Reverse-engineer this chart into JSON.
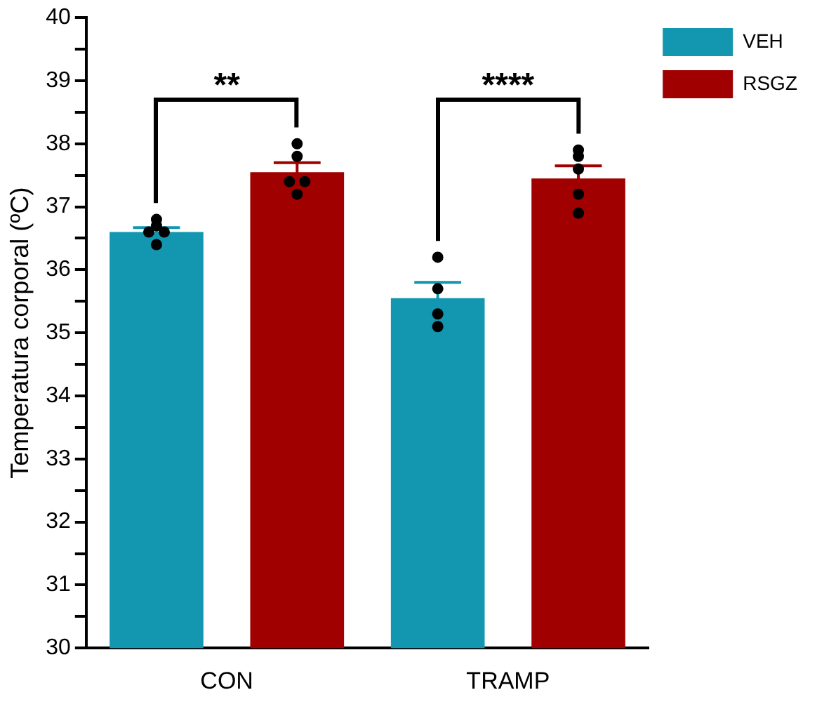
{
  "chart_data": {
    "type": "bar",
    "ylabel": "Temperatura corporal (ºC)",
    "categories": [
      "CON",
      "TRAMP"
    ],
    "series": [
      {
        "name": "VEH",
        "color": "#1396b0",
        "values": [
          36.6,
          35.55
        ],
        "errors": [
          0.07,
          0.25
        ]
      },
      {
        "name": "RSGZ",
        "color": "#a00000",
        "values": [
          37.55,
          37.45
        ],
        "errors": [
          0.15,
          0.2
        ]
      },
      {
        "type": "scatter",
        "color": "#000000",
        "x": [
          "CON",
          "CON",
          "CON",
          "CON",
          "CON",
          "TRAMP",
          "TRAMP",
          "TRAMP",
          "TRAMP"
        ],
        "values": [
          36.8,
          36.7,
          36.6,
          36.6,
          36.4,
          36.2,
          35.7,
          35.3,
          35.1
        ]
      },
      {
        "type": "scatter",
        "color": "#000000",
        "x": [
          "CON",
          "CON",
          "CON",
          "CON",
          "CON",
          "TRAMP",
          "TRAMP",
          "TRAMP",
          "TRAMP",
          "TRAMP"
        ],
        "values": [
          38.0,
          37.8,
          37.4,
          37.4,
          37.2,
          37.9,
          37.8,
          37.6,
          37.2,
          36.9
        ]
      }
    ],
    "annotations": [
      "**",
      "****"
    ],
    "ylim": [
      30,
      40
    ],
    "yticks": [
      30,
      {
        "value": 30.5,
        "label": null
      },
      31,
      {
        "value": 31.5,
        "label": null
      },
      32,
      {
        "value": 32.5,
        "label": null
      },
      33,
      {
        "value": 33.5,
        "label": null
      },
      34,
      {
        "value": 34.5,
        "label": null
      },
      35,
      {
        "value": 35.5,
        "label": null
      },
      36,
      {
        "value": 36.5,
        "label": null
      },
      37,
      {
        "value": 37.5,
        "label": null
      },
      38,
      {
        "value": 38.5,
        "label": null
      },
      39,
      {
        "value": 39.5,
        "label": null
      },
      40
    ],
    "grid": false,
    "legend": "top right",
    "marker": "circle"
  }
}
